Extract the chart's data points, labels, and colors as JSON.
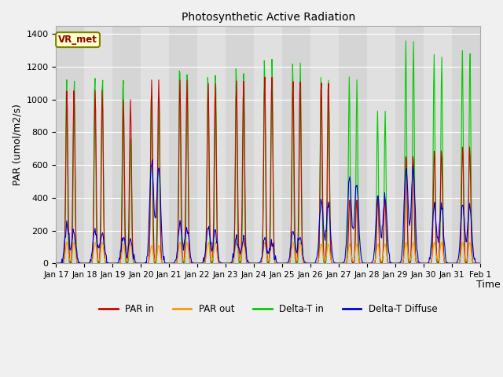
{
  "title": "Photosynthetic Active Radiation",
  "ylabel": "PAR (umol/m2/s)",
  "xlabel": "Time",
  "annotation": "VR_met",
  "ylim": [
    0,
    1450
  ],
  "legend_labels": [
    "PAR in",
    "PAR out",
    "Delta-T in",
    "Delta-T Diffuse"
  ],
  "line_colors": [
    "#cc0000",
    "#ff9900",
    "#00cc00",
    "#0000cc"
  ],
  "fig_facecolor": "#f0f0f0",
  "plot_bg_color": "#e0e0e0",
  "tick_labels": [
    "Jan 17",
    "Jan 18",
    "Jan 19",
    "Jan 20",
    "Jan 21",
    "Jan 22",
    "Jan 23",
    "Jan 24",
    "Jan 25",
    "Jan 26",
    "Jan 27",
    "Jan 28",
    "Jan 29",
    "Jan 30",
    "Jan 31",
    "Feb 1"
  ],
  "n_days": 15,
  "pts_per_day": 48,
  "par_in_peaks": [
    1060,
    1060,
    1000,
    1120,
    1120,
    1100,
    1120,
    1150,
    1130,
    1130,
    400,
    410,
    670,
    700,
    720
  ],
  "par_out_peaks": [
    130,
    130,
    120,
    110,
    130,
    130,
    130,
    130,
    130,
    120,
    120,
    120,
    130,
    130,
    130
  ],
  "delta_t_peaks": [
    1140,
    1160,
    1160,
    1070,
    1240,
    1180,
    1220,
    1260,
    1230,
    1140,
    1140,
    930,
    1360,
    1280,
    1310
  ],
  "delta_t_peaks2": [
    1140,
    1160,
    800,
    1070,
    1200,
    1180,
    1180,
    1260,
    1230,
    1120,
    1120,
    930,
    1360,
    1270,
    1300
  ],
  "delta_diff_peaks": [
    235,
    215,
    170,
    625,
    240,
    230,
    155,
    140,
    190,
    390,
    510,
    410,
    580,
    365,
    360
  ],
  "delta_diff_peaks2": [
    200,
    190,
    150,
    600,
    220,
    200,
    140,
    130,
    175,
    370,
    490,
    400,
    570,
    350,
    350
  ]
}
